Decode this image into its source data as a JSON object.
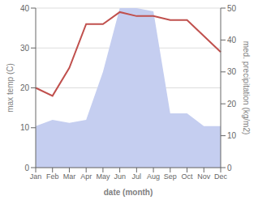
{
  "chart_data": {
    "type": "line",
    "categories": [
      "Jan",
      "Feb",
      "Mar",
      "Apr",
      "May",
      "Jun",
      "Jul",
      "Aug",
      "Sep",
      "Oct",
      "Nov",
      "Dec"
    ],
    "series": [
      {
        "type": "area",
        "axis": "y2",
        "color": "#c5cef0",
        "values": [
          13,
          15,
          14,
          15,
          30,
          50,
          50,
          49,
          17,
          17,
          13,
          13
        ]
      },
      {
        "type": "line",
        "color": "#c0504d",
        "values": [
          20,
          18,
          25,
          36,
          36,
          39,
          38,
          38,
          37,
          37,
          33,
          29
        ]
      }
    ],
    "xlabel": "date (month)",
    "ylabel": "max temp (C)",
    "y2label": "med. precipitation (kg/m2)",
    "ylim": [
      0,
      40
    ],
    "yticks": [
      0,
      10,
      20,
      30,
      40
    ],
    "y2lim": [
      0,
      50
    ],
    "y2ticks": [
      0,
      10,
      20,
      30,
      40,
      50
    ],
    "grid": true
  }
}
